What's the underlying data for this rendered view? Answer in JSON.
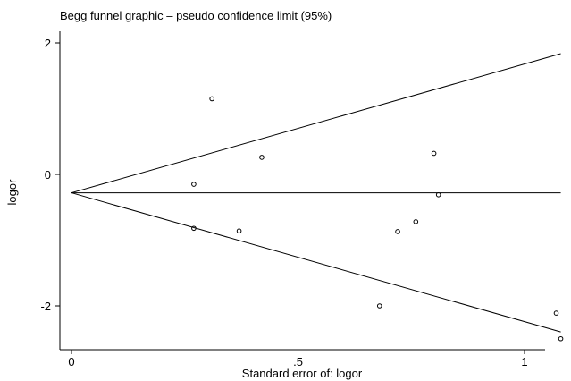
{
  "chart_data": {
    "type": "scatter",
    "title": "Begg funnel graphic – pseudo confidence limit (95%)",
    "xlabel": "Standard error of: logor",
    "ylabel": "logor",
    "xlim": [
      0,
      1.08
    ],
    "ylim": [
      -2.65,
      2.1
    ],
    "x_ticks": [
      {
        "value": 0,
        "label": "0"
      },
      {
        "value": 0.5,
        "label": ".5"
      },
      {
        "value": 1,
        "label": "1"
      }
    ],
    "y_ticks": [
      {
        "value": 2,
        "label": "2"
      },
      {
        "value": 0,
        "label": "0"
      },
      {
        "value": -2,
        "label": "-2"
      }
    ],
    "grid": false,
    "legend": "none",
    "pooled_estimate": -0.28,
    "confidence_z": 1.96,
    "points": [
      {
        "x": 0.31,
        "y": 1.15
      },
      {
        "x": 0.42,
        "y": 0.26
      },
      {
        "x": 0.27,
        "y": -0.15
      },
      {
        "x": 0.8,
        "y": 0.32
      },
      {
        "x": 0.81,
        "y": -0.31
      },
      {
        "x": 0.76,
        "y": -0.72
      },
      {
        "x": 0.27,
        "y": -0.82
      },
      {
        "x": 0.37,
        "y": -0.86
      },
      {
        "x": 0.72,
        "y": -0.87
      },
      {
        "x": 0.68,
        "y": -2.0
      },
      {
        "x": 1.07,
        "y": -2.11
      },
      {
        "x": 1.08,
        "y": -2.5
      }
    ],
    "colors": {
      "line": "#000000",
      "marker": "#000000",
      "background": "#ffffff"
    }
  }
}
